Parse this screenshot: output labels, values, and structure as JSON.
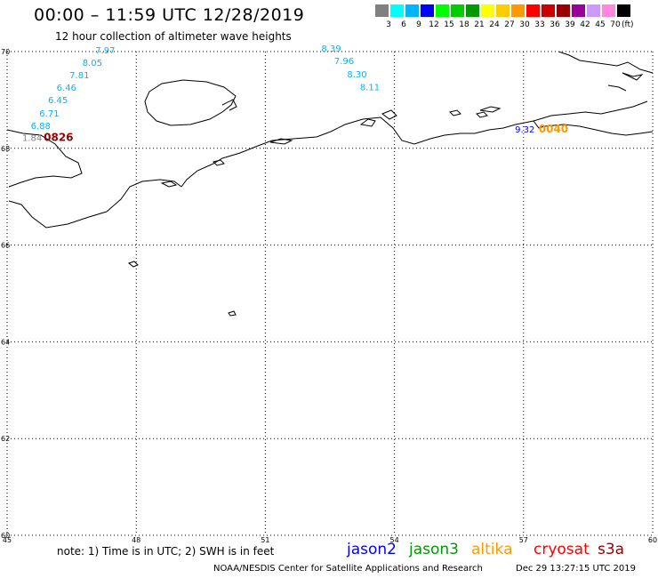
{
  "title": "00:00 – 11:59 UTC 12/28/2019",
  "subtitle": "12 hour collection of altimeter wave heights",
  "color_scale": {
    "unit": "(ft)",
    "bins": [
      {
        "label": "3",
        "color": "#808080"
      },
      {
        "label": "6",
        "color": "#00ffff"
      },
      {
        "label": "9",
        "color": "#00b4ff"
      },
      {
        "label": "12",
        "color": "#0000ff"
      },
      {
        "label": "15",
        "color": "#00ff00"
      },
      {
        "label": "18",
        "color": "#00cc00"
      },
      {
        "label": "21",
        "color": "#009900"
      },
      {
        "label": "24",
        "color": "#ffff00"
      },
      {
        "label": "27",
        "color": "#ffcc00"
      },
      {
        "label": "30",
        "color": "#ff9900"
      },
      {
        "label": "33",
        "color": "#ff0000"
      },
      {
        "label": "36",
        "color": "#cc0000"
      },
      {
        "label": "39",
        "color": "#990000"
      },
      {
        "label": "42",
        "color": "#990099"
      },
      {
        "label": "45",
        "color": "#cc99ff"
      },
      {
        "label": "70",
        "color": "#ff88dd"
      },
      {
        "label": "",
        "color": "#000000"
      }
    ]
  },
  "map": {
    "lon_range": [
      45,
      60
    ],
    "lat_range": [
      60,
      70
    ],
    "lon_ticks": [
      "45",
      "48",
      "51",
      "54",
      "57",
      "60"
    ],
    "lat_ticks": [
      "60",
      "62",
      "64",
      "66",
      "68",
      "70"
    ]
  },
  "observations": [
    {
      "text": "7.97",
      "lon": 47.05,
      "lat": 69.96,
      "color": "#00b4ff"
    },
    {
      "text": "8.05",
      "lon": 46.75,
      "lat": 69.71,
      "color": "#00b4ff"
    },
    {
      "text": "7.81",
      "lon": 46.45,
      "lat": 69.45,
      "color": "#00b4ff"
    },
    {
      "text": "6.46",
      "lon": 46.15,
      "lat": 69.19,
      "color": "#00b4ff"
    },
    {
      "text": "6.45",
      "lon": 45.95,
      "lat": 68.93,
      "color": "#00b4ff"
    },
    {
      "text": "6.71",
      "lon": 45.75,
      "lat": 68.66,
      "color": "#00b4ff"
    },
    {
      "text": "6.88",
      "lon": 45.55,
      "lat": 68.4,
      "color": "#00b4ff"
    },
    {
      "text": "1.84",
      "lon": 45.35,
      "lat": 68.15,
      "color": "#808080"
    },
    {
      "text": "0826",
      "lon": 45.85,
      "lat": 68.15,
      "color": "#990000",
      "time": true
    },
    {
      "text": "8.39",
      "lon": 52.3,
      "lat": 70.0,
      "color": "#00b4ff"
    },
    {
      "text": "7.96",
      "lon": 52.6,
      "lat": 69.74,
      "color": "#00b4ff"
    },
    {
      "text": "8.30",
      "lon": 52.9,
      "lat": 69.47,
      "color": "#00b4ff"
    },
    {
      "text": "8.11",
      "lon": 53.2,
      "lat": 69.2,
      "color": "#00b4ff"
    },
    {
      "text": "9.32",
      "lon": 56.8,
      "lat": 68.33,
      "color": "#0000ff"
    },
    {
      "text": "0040",
      "lon": 57.35,
      "lat": 68.33,
      "color": "#ff9900",
      "time": true
    }
  ],
  "note": "note: 1) Time is in UTC; 2) SWH is in feet",
  "legend": [
    {
      "name": "jason2",
      "color": "#0000ff"
    },
    {
      "name": "jason3",
      "color": "#009900"
    },
    {
      "name": "altika",
      "color": "#ff9900"
    },
    {
      "name": "cryosat",
      "color": "#ff0000"
    },
    {
      "name": "s3a",
      "color": "#990000"
    }
  ],
  "credit": "NOAA/NESDIS Center for Satellite Applications and Research",
  "timestamp": "Dec 29 13:27:15 UTC 2019"
}
